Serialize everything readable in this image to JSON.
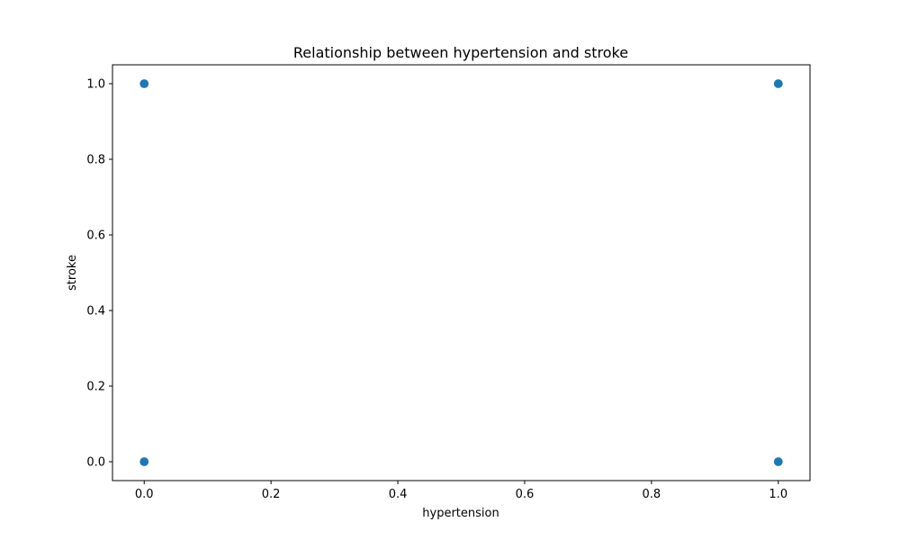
{
  "chart_data": {
    "type": "scatter",
    "title": "Relationship between hypertension and stroke",
    "xlabel": "hypertension",
    "ylabel": "stroke",
    "xlim": [
      -0.05,
      1.05
    ],
    "ylim": [
      -0.05,
      1.05
    ],
    "xticks": [
      0.0,
      0.2,
      0.4,
      0.6,
      0.8,
      1.0
    ],
    "xtick_labels": [
      "0.0",
      "0.2",
      "0.4",
      "0.6",
      "0.8",
      "1.0"
    ],
    "yticks": [
      0.0,
      0.2,
      0.4,
      0.6,
      0.8,
      1.0
    ],
    "ytick_labels": [
      "0.0",
      "0.2",
      "0.4",
      "0.6",
      "0.8",
      "1.0"
    ],
    "grid": false,
    "marker_color": "#1f77b4",
    "series": [
      {
        "points": [
          {
            "x": 0,
            "y": 1
          },
          {
            "x": 1,
            "y": 1
          },
          {
            "x": 0,
            "y": 0
          },
          {
            "x": 1,
            "y": 0
          }
        ]
      }
    ]
  }
}
